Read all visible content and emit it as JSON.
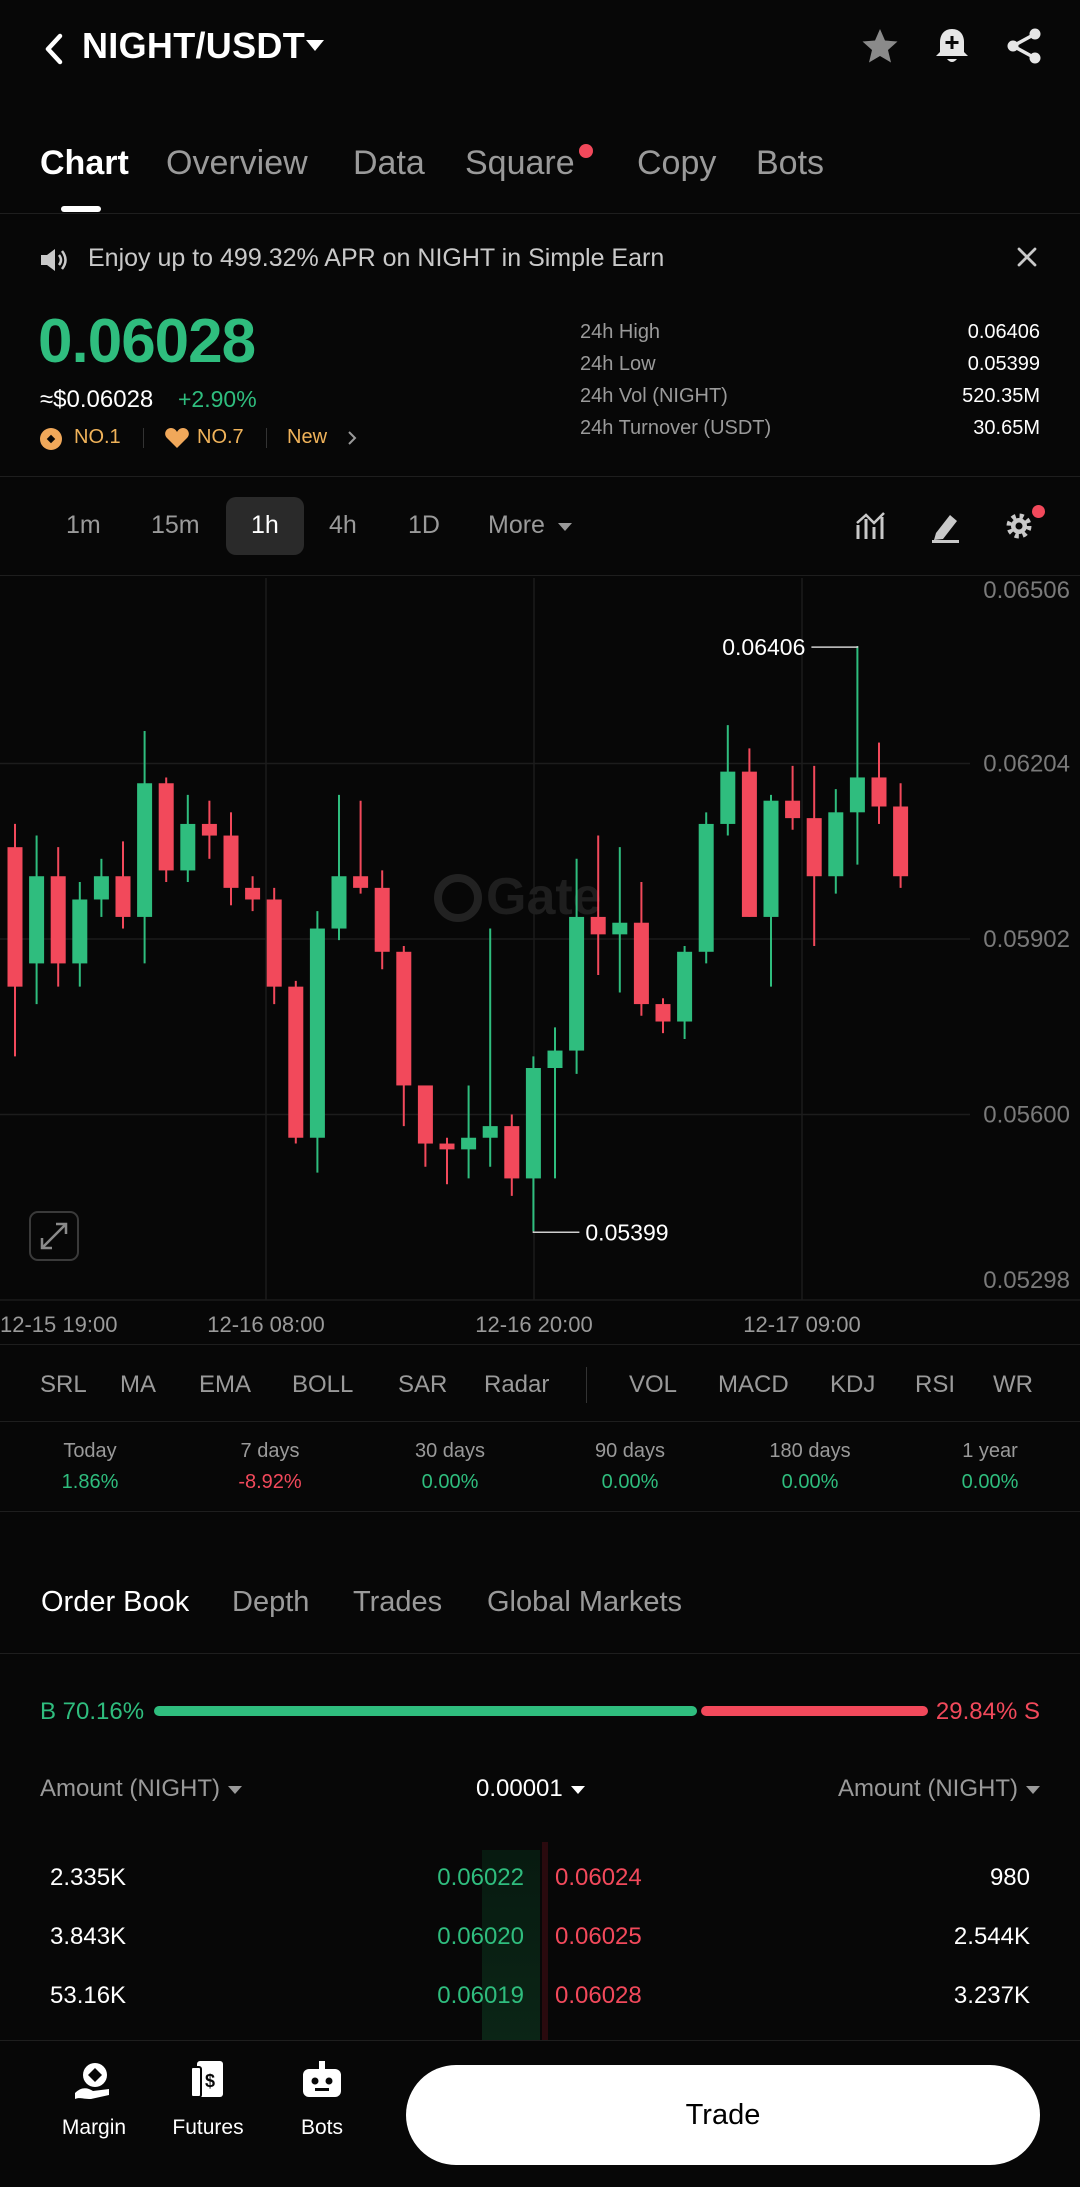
{
  "header": {
    "pair": "NIGHT/USDT",
    "icons": [
      "back-icon",
      "star-icon",
      "bell-icon",
      "share-icon"
    ]
  },
  "tabs": [
    {
      "label": "Chart",
      "active": true
    },
    {
      "label": "Overview"
    },
    {
      "label": "Data"
    },
    {
      "label": "Square",
      "dot": true
    },
    {
      "label": "Copy"
    },
    {
      "label": "Bots"
    }
  ],
  "banner": {
    "text": "Enjoy up to 499.32% APR on NIGHT in Simple Earn"
  },
  "ticker": {
    "price": "0.06028",
    "usd": "≈$0.06028",
    "change": "+2.90%",
    "rank1": "NO.1",
    "rank2": "NO.7",
    "tag": "New",
    "stats": [
      {
        "label": "24h High",
        "value": "0.06406"
      },
      {
        "label": "24h Low",
        "value": "0.05399"
      },
      {
        "label": "24h Vol (NIGHT)",
        "value": "520.35M"
      },
      {
        "label": "24h Turnover (USDT)",
        "value": "30.65M"
      }
    ]
  },
  "intervals": [
    "1m",
    "15m",
    "1h",
    "4h",
    "1D"
  ],
  "interval_selected": "1h",
  "interval_more": "More",
  "chart_data": {
    "type": "candlestick",
    "ylim": [
      0.05298,
      0.06506
    ],
    "yticks": [
      "0.06506",
      "0.06204",
      "0.05902",
      "0.05600",
      "0.05298"
    ],
    "xticks": [
      "12-15 19:00",
      "12-16 08:00",
      "12-16 20:00",
      "12-17 09:00"
    ],
    "high_label": "0.06406",
    "low_label": "0.05399",
    "watermark": "Gate",
    "colors": {
      "up": "#2fbd7e",
      "down": "#f2495b"
    },
    "candles": [
      {
        "o": 0.0606,
        "c": 0.0582,
        "h": 0.061,
        "l": 0.057
      },
      {
        "o": 0.0586,
        "c": 0.0601,
        "h": 0.0608,
        "l": 0.0579
      },
      {
        "o": 0.0601,
        "c": 0.0586,
        "h": 0.0606,
        "l": 0.0582
      },
      {
        "o": 0.0586,
        "c": 0.0597,
        "h": 0.06,
        "l": 0.0582
      },
      {
        "o": 0.0597,
        "c": 0.0601,
        "h": 0.0604,
        "l": 0.0594
      },
      {
        "o": 0.0601,
        "c": 0.0594,
        "h": 0.0607,
        "l": 0.0592
      },
      {
        "o": 0.0594,
        "c": 0.0617,
        "h": 0.0626,
        "l": 0.0586
      },
      {
        "o": 0.0617,
        "c": 0.0602,
        "h": 0.0618,
        "l": 0.06
      },
      {
        "o": 0.0602,
        "c": 0.061,
        "h": 0.0615,
        "l": 0.06
      },
      {
        "o": 0.061,
        "c": 0.0608,
        "h": 0.0614,
        "l": 0.0604
      },
      {
        "o": 0.0608,
        "c": 0.0599,
        "h": 0.0612,
        "l": 0.0596
      },
      {
        "o": 0.0599,
        "c": 0.0597,
        "h": 0.0601,
        "l": 0.0595
      },
      {
        "o": 0.0597,
        "c": 0.0582,
        "h": 0.0599,
        "l": 0.0579
      },
      {
        "o": 0.0582,
        "c": 0.0556,
        "h": 0.0583,
        "l": 0.0555
      },
      {
        "o": 0.0556,
        "c": 0.0592,
        "h": 0.0595,
        "l": 0.055
      },
      {
        "o": 0.0592,
        "c": 0.0601,
        "h": 0.0615,
        "l": 0.059
      },
      {
        "o": 0.0601,
        "c": 0.0599,
        "h": 0.0614,
        "l": 0.0598
      },
      {
        "o": 0.0599,
        "c": 0.0588,
        "h": 0.0602,
        "l": 0.0585
      },
      {
        "o": 0.0588,
        "c": 0.0565,
        "h": 0.0589,
        "l": 0.0558
      },
      {
        "o": 0.0565,
        "c": 0.0555,
        "h": 0.0565,
        "l": 0.0551
      },
      {
        "o": 0.0555,
        "c": 0.0554,
        "h": 0.0556,
        "l": 0.0548
      },
      {
        "o": 0.0554,
        "c": 0.0556,
        "h": 0.0565,
        "l": 0.0549
      },
      {
        "o": 0.0556,
        "c": 0.0558,
        "h": 0.0592,
        "l": 0.0551
      },
      {
        "o": 0.0558,
        "c": 0.0549,
        "h": 0.056,
        "l": 0.0546
      },
      {
        "o": 0.0549,
        "c": 0.0568,
        "h": 0.057,
        "l": 0.05399
      },
      {
        "o": 0.0568,
        "c": 0.0571,
        "h": 0.0575,
        "l": 0.0549
      },
      {
        "o": 0.0571,
        "c": 0.0594,
        "h": 0.0604,
        "l": 0.0567
      },
      {
        "o": 0.0594,
        "c": 0.0591,
        "h": 0.0608,
        "l": 0.0584
      },
      {
        "o": 0.0591,
        "c": 0.0593,
        "h": 0.0606,
        "l": 0.0581
      },
      {
        "o": 0.0593,
        "c": 0.0579,
        "h": 0.06,
        "l": 0.0577
      },
      {
        "o": 0.0579,
        "c": 0.0576,
        "h": 0.058,
        "l": 0.0574
      },
      {
        "o": 0.0576,
        "c": 0.0588,
        "h": 0.0589,
        "l": 0.0573
      },
      {
        "o": 0.0588,
        "c": 0.061,
        "h": 0.0612,
        "l": 0.0586
      },
      {
        "o": 0.061,
        "c": 0.0619,
        "h": 0.0627,
        "l": 0.0608
      },
      {
        "o": 0.0619,
        "c": 0.0594,
        "h": 0.0623,
        "l": 0.0594
      },
      {
        "o": 0.0594,
        "c": 0.0614,
        "h": 0.0615,
        "l": 0.0582
      },
      {
        "o": 0.0614,
        "c": 0.0611,
        "h": 0.062,
        "l": 0.0609
      },
      {
        "o": 0.0611,
        "c": 0.0601,
        "h": 0.062,
        "l": 0.0589
      },
      {
        "o": 0.0601,
        "c": 0.0612,
        "h": 0.0616,
        "l": 0.0598
      },
      {
        "o": 0.0612,
        "c": 0.0618,
        "h": 0.06406,
        "l": 0.0603
      },
      {
        "o": 0.0618,
        "c": 0.0613,
        "h": 0.0624,
        "l": 0.061
      },
      {
        "o": 0.0613,
        "c": 0.0601,
        "h": 0.0617,
        "l": 0.0599
      }
    ]
  },
  "indicators_main": [
    "SRL",
    "MA",
    "EMA",
    "BOLL",
    "SAR",
    "Radar"
  ],
  "indicators_sub": [
    "VOL",
    "MACD",
    "KDJ",
    "RSI",
    "WR"
  ],
  "periods": [
    {
      "label": "Today",
      "value": "1.86%",
      "dir": "up"
    },
    {
      "label": "7 days",
      "value": "-8.92%",
      "dir": "down"
    },
    {
      "label": "30 days",
      "value": "0.00%",
      "dir": "up"
    },
    {
      "label": "90 days",
      "value": "0.00%",
      "dir": "up"
    },
    {
      "label": "180 days",
      "value": "0.00%",
      "dir": "up"
    },
    {
      "label": "1 year",
      "value": "0.00%",
      "dir": "up"
    }
  ],
  "orderbook": {
    "tabs": [
      "Order Book",
      "Depth",
      "Trades",
      "Global Markets"
    ],
    "buy_ratio": "B 70.16%",
    "sell_ratio": "29.84% S",
    "buy_fraction": 0.7016,
    "col_left": "Amount (NIGHT)",
    "precision": "0.00001",
    "col_right": "Amount (NIGHT)",
    "rows": [
      {
        "bid_amt": "2.335K",
        "bid": "0.06022",
        "ask": "0.06024",
        "ask_amt": "980"
      },
      {
        "bid_amt": "3.843K",
        "bid": "0.06020",
        "ask": "0.06025",
        "ask_amt": "2.544K"
      },
      {
        "bid_amt": "53.16K",
        "bid": "0.06019",
        "ask": "0.06028",
        "ask_amt": "3.237K"
      }
    ]
  },
  "bottom_nav": [
    {
      "label": "Margin",
      "icon": "margin-icon"
    },
    {
      "label": "Futures",
      "icon": "futures-icon"
    },
    {
      "label": "Bots",
      "icon": "bots-icon"
    }
  ],
  "trade_label": "Trade"
}
